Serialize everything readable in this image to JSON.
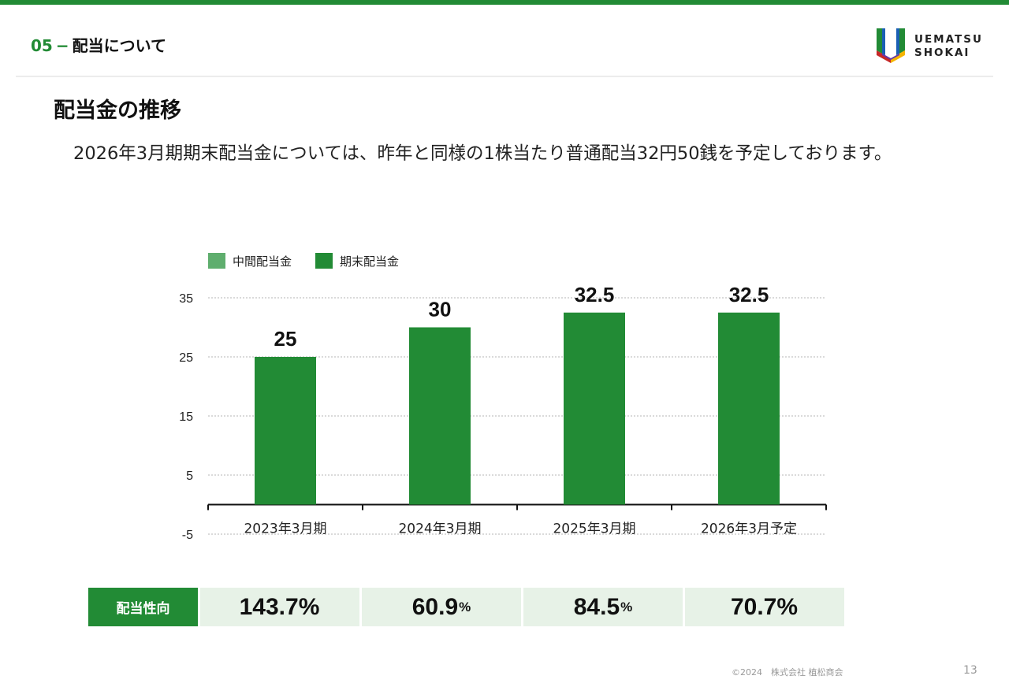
{
  "header": {
    "section_number": "05",
    "section_dash": "−",
    "section_title": "配当について",
    "logo_line1": "UEMATSU",
    "logo_line2": "SHOKAI"
  },
  "page_title": "配当金の推移",
  "body_text": "2026年3月期期末配当金については、昨年と同様の1株当たり普通配当32円50銭を予定しております。",
  "chart_data": {
    "type": "bar",
    "categories": [
      "2023年3月期",
      "2024年3月期",
      "2025年3月期",
      "2026年3月予定"
    ],
    "series": [
      {
        "name": "中間配当金",
        "values": [
          0,
          0,
          0,
          0
        ],
        "color": "#5FAE6E"
      },
      {
        "name": "期末配当金",
        "values": [
          25,
          30,
          32.5,
          32.5
        ],
        "color": "#228B35"
      }
    ],
    "data_labels": [
      "25",
      "30",
      "32.5",
      "32.5"
    ],
    "yticks": [
      35,
      25,
      15,
      5,
      -5
    ],
    "ylim": [
      -5,
      35
    ],
    "grid": true,
    "legend_position": "top-left",
    "title": "",
    "xlabel": "",
    "ylabel": ""
  },
  "payout_ratio": {
    "label": "配当性向",
    "values": [
      {
        "number": "143.7%",
        "suffix": ""
      },
      {
        "number": "60.9",
        "suffix": "%"
      },
      {
        "number": "84.5",
        "suffix": "%"
      },
      {
        "number": "70.7%",
        "suffix": ""
      }
    ]
  },
  "footer": {
    "copyright": "©2024　株式会社 植松商会",
    "page_number": "13"
  },
  "colors": {
    "accent": "#228B35",
    "accent_light": "#5FAE6E",
    "cell_bg": "#e7f2e7"
  }
}
